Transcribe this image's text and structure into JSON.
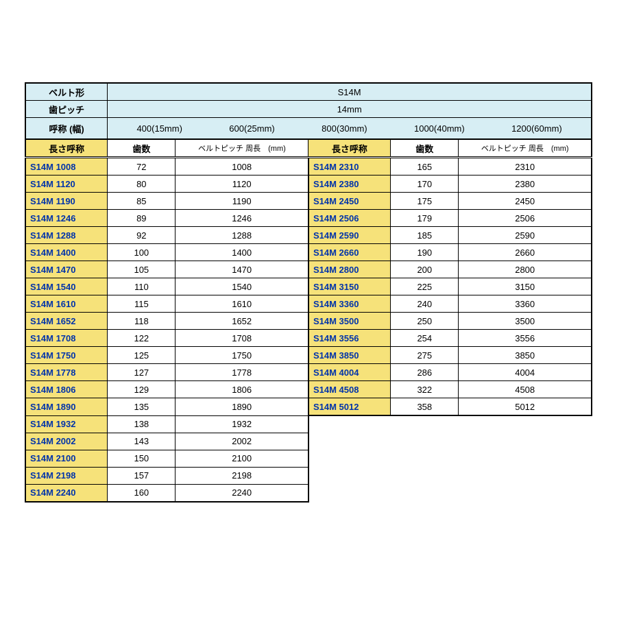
{
  "colors": {
    "header_bg": "#d7eef4",
    "highlight_bg": "#f6e27a",
    "link_text": "#0033aa",
    "border": "#000000",
    "background": "#ffffff"
  },
  "font_sizes": {
    "cell": 13,
    "small_header": 11
  },
  "header": {
    "belt_type_label": "ベルト形",
    "belt_type_value": "S14M",
    "pitch_label": "歯ピッチ",
    "pitch_value": "14mm",
    "width_label": "呼称 (幅)",
    "widths": [
      "400(15mm)",
      "600(25mm)",
      "800(30mm)",
      "1000(40mm)",
      "1200(60mm)"
    ]
  },
  "subheaders": {
    "length_name": "長さ呼称",
    "tooth_count": "歯数",
    "pitch_length": "ベルトピッチ  周長　(mm)"
  },
  "left_rows": [
    {
      "name": "S14M 1008",
      "teeth": "72",
      "len": "1008"
    },
    {
      "name": "S14M 1120",
      "teeth": "80",
      "len": "1120"
    },
    {
      "name": "S14M 1190",
      "teeth": "85",
      "len": "1190"
    },
    {
      "name": "S14M 1246",
      "teeth": "89",
      "len": "1246"
    },
    {
      "name": "S14M 1288",
      "teeth": "92",
      "len": "1288"
    },
    {
      "name": "S14M 1400",
      "teeth": "100",
      "len": "1400"
    },
    {
      "name": "S14M 1470",
      "teeth": "105",
      "len": "1470"
    },
    {
      "name": "S14M 1540",
      "teeth": "110",
      "len": "1540"
    },
    {
      "name": "S14M 1610",
      "teeth": "115",
      "len": "1610"
    },
    {
      "name": "S14M 1652",
      "teeth": "118",
      "len": "1652"
    },
    {
      "name": "S14M 1708",
      "teeth": "122",
      "len": "1708"
    },
    {
      "name": "S14M 1750",
      "teeth": "125",
      "len": "1750"
    },
    {
      "name": "S14M 1778",
      "teeth": "127",
      "len": "1778"
    },
    {
      "name": "S14M 1806",
      "teeth": "129",
      "len": "1806"
    },
    {
      "name": "S14M 1890",
      "teeth": "135",
      "len": "1890"
    },
    {
      "name": "S14M 1932",
      "teeth": "138",
      "len": "1932"
    },
    {
      "name": "S14M 2002",
      "teeth": "143",
      "len": "2002"
    },
    {
      "name": "S14M 2100",
      "teeth": "150",
      "len": "2100"
    },
    {
      "name": "S14M 2198",
      "teeth": "157",
      "len": "2198"
    },
    {
      "name": "S14M 2240",
      "teeth": "160",
      "len": "2240"
    }
  ],
  "right_rows": [
    {
      "name": "S14M 2310",
      "teeth": "165",
      "len": "2310"
    },
    {
      "name": "S14M 2380",
      "teeth": "170",
      "len": "2380"
    },
    {
      "name": "S14M 2450",
      "teeth": "175",
      "len": "2450"
    },
    {
      "name": "S14M 2506",
      "teeth": "179",
      "len": "2506"
    },
    {
      "name": "S14M 2590",
      "teeth": "185",
      "len": "2590"
    },
    {
      "name": "S14M 2660",
      "teeth": "190",
      "len": "2660"
    },
    {
      "name": "S14M 2800",
      "teeth": "200",
      "len": "2800"
    },
    {
      "name": "S14M 3150",
      "teeth": "225",
      "len": "3150"
    },
    {
      "name": "S14M 3360",
      "teeth": "240",
      "len": "3360"
    },
    {
      "name": "S14M 3500",
      "teeth": "250",
      "len": "3500"
    },
    {
      "name": "S14M 3556",
      "teeth": "254",
      "len": "3556"
    },
    {
      "name": "S14M 3850",
      "teeth": "275",
      "len": "3850"
    },
    {
      "name": "S14M 4004",
      "teeth": "286",
      "len": "4004"
    },
    {
      "name": "S14M 4508",
      "teeth": "322",
      "len": "4508"
    },
    {
      "name": "S14M 5012",
      "teeth": "358",
      "len": "5012"
    }
  ]
}
